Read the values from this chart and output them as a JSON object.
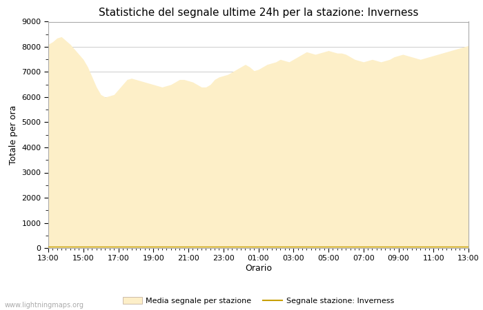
{
  "title": "Statistiche del segnale ultime 24h per la stazione: Inverness",
  "xlabel": "Orario",
  "ylabel": "Totale per ora",
  "ylim": [
    0,
    9000
  ],
  "yticks": [
    0,
    1000,
    2000,
    3000,
    4000,
    5000,
    6000,
    7000,
    8000,
    9000
  ],
  "xtick_labels": [
    "13:00",
    "15:00",
    "17:00",
    "19:00",
    "21:00",
    "23:00",
    "01:00",
    "03:00",
    "05:00",
    "07:00",
    "09:00",
    "11:00",
    "13:00"
  ],
  "fill_color": "#FDEFC8",
  "fill_edge_color": "#FDEFC8",
  "station_line_color": "#C8A000",
  "background_color": "#ffffff",
  "plot_bg_color": "#ffffff",
  "grid_color": "#cccccc",
  "watermark": "www.lightningmaps.org",
  "legend_fill_label": "Media segnale per stazione",
  "legend_line_label": "Segnale stazione: Inverness",
  "title_fontsize": 11,
  "axis_label_fontsize": 9,
  "tick_fontsize": 8,
  "x": [
    0,
    0.5,
    1,
    1.5,
    2,
    2.5,
    3,
    3.5,
    4,
    4.5,
    5,
    5.5,
    6,
    6.5,
    7,
    7.5,
    8,
    8.5,
    9,
    9.5,
    10,
    10.5,
    11,
    11.5,
    12,
    12.5,
    13,
    13.5,
    14,
    14.5,
    15,
    15.5,
    16,
    16.5,
    17,
    17.5,
    18,
    18.5,
    19,
    19.5,
    20,
    20.5,
    21,
    21.5,
    22,
    22.5,
    23,
    23.5,
    24,
    24.5,
    25,
    25.5,
    26,
    26.5,
    27,
    27.5,
    28,
    28.5,
    29,
    29.5,
    30,
    30.5,
    31,
    31.5,
    32,
    32.5,
    33,
    33.5,
    34,
    34.5,
    35,
    35.5,
    36,
    36.5,
    37,
    37.5,
    38,
    38.5,
    39,
    39.5,
    40,
    40.5,
    41,
    41.5,
    42,
    42.5,
    43,
    43.5,
    44,
    44.5,
    45,
    45.5,
    46,
    46.5,
    47,
    47.5,
    48
  ],
  "y_fill": [
    8100,
    8200,
    8350,
    8400,
    8250,
    8100,
    7900,
    7700,
    7500,
    7200,
    6800,
    6400,
    6100,
    6000,
    6050,
    6100,
    6300,
    6500,
    6700,
    6750,
    6700,
    6650,
    6600,
    6550,
    6500,
    6450,
    6400,
    6450,
    6500,
    6600,
    6700,
    6700,
    6650,
    6600,
    6500,
    6400,
    6400,
    6500,
    6700,
    6800,
    6850,
    6900,
    7000,
    7100,
    7200,
    7300,
    7200,
    7050,
    7100,
    7200,
    7300,
    7350,
    7400,
    7500,
    7450,
    7400,
    7500,
    7600,
    7700,
    7800,
    7750,
    7700,
    7750,
    7800,
    7850,
    7800,
    7750,
    7750,
    7700,
    7600,
    7500,
    7450,
    7400,
    7450,
    7500,
    7450,
    7400,
    7450,
    7500,
    7600,
    7650,
    7700,
    7650,
    7600,
    7550,
    7500,
    7550,
    7600,
    7650,
    7700,
    7750,
    7800,
    7850,
    7900,
    7950,
    8000,
    8050
  ],
  "y_station": [
    50,
    50,
    50,
    50,
    50,
    50,
    50,
    50,
    50,
    50,
    50,
    50,
    50,
    50,
    50,
    50,
    50,
    50,
    50,
    50,
    50,
    50,
    50,
    50,
    50,
    50,
    50,
    50,
    50,
    50,
    50,
    50,
    50,
    50,
    50,
    50,
    50,
    50,
    50,
    50,
    50,
    50,
    50,
    50,
    50,
    50,
    50,
    50,
    50,
    50,
    50,
    50,
    50,
    50,
    50,
    50,
    50,
    50,
    50,
    50,
    50,
    50,
    50,
    50,
    50,
    50,
    50,
    50,
    50,
    50,
    50,
    50,
    50,
    50,
    50,
    50,
    50,
    50,
    50,
    50,
    50,
    50,
    50,
    50,
    50,
    50,
    50,
    50,
    50,
    50,
    50,
    50,
    50,
    50,
    50,
    50,
    50
  ]
}
